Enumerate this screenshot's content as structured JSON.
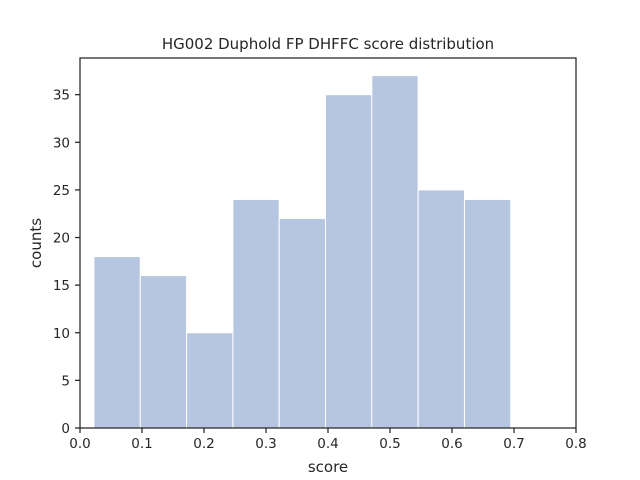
{
  "chart_data": {
    "type": "bar",
    "title": "HG002 Duphold FP DHFFC score distribution",
    "xlabel": "score",
    "ylabel": "counts",
    "xlim": [
      0.0,
      0.8
    ],
    "ylim": [
      0,
      38.85
    ],
    "xticks": [
      0.0,
      0.1,
      0.2,
      0.3,
      0.4,
      0.5,
      0.6,
      0.7,
      0.8
    ],
    "xtick_labels": [
      "0.0",
      "0.1",
      "0.2",
      "0.3",
      "0.4",
      "0.5",
      "0.6",
      "0.7",
      "0.8"
    ],
    "yticks": [
      0,
      5,
      10,
      15,
      20,
      25,
      30,
      35
    ],
    "ytick_labels": [
      "0",
      "5",
      "10",
      "15",
      "20",
      "25",
      "30",
      "35"
    ],
    "bin_edges": [
      0.0225,
      0.0972,
      0.1719,
      0.2466,
      0.3213,
      0.396,
      0.4707,
      0.5454,
      0.6201,
      0.6948
    ],
    "values": [
      18,
      16,
      10,
      24,
      22,
      35,
      37,
      25,
      24
    ],
    "color": "#b6c5e0",
    "grid": false
  }
}
